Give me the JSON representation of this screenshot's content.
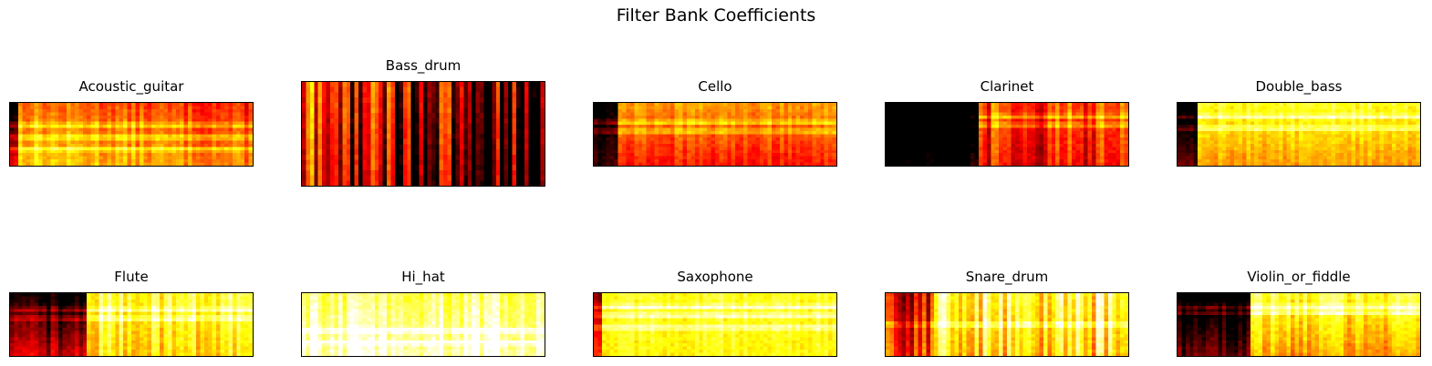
{
  "title": "Filter Bank Coefficients",
  "colormap": "hot",
  "chart_data": [
    {
      "type": "heatmap",
      "title": "Acoustic_guitar",
      "grid": false,
      "axes": "off",
      "features": {
        "attack_frac": 0.03,
        "attack_strength": 0.6,
        "bright_band_rows": [
          0.35,
          0.55,
          0.75
        ],
        "base_level": 0.55,
        "low_rows_level": 0.7,
        "decay": 0.15,
        "stripe": 0.08
      }
    },
    {
      "type": "heatmap",
      "title": "Bass_drum",
      "grid": false,
      "axes": "off",
      "features": {
        "attack_frac": 0.0,
        "attack_strength": 0.0,
        "bright_band_rows": [],
        "base_level": 0.45,
        "low_rows_level": 0.35,
        "decay": 0.35,
        "stripe": 0.35
      }
    },
    {
      "type": "heatmap",
      "title": "Cello",
      "grid": false,
      "axes": "off",
      "features": {
        "attack_frac": 0.1,
        "attack_strength": 0.6,
        "bright_band_rows": [
          0.3,
          0.45
        ],
        "base_level": 0.6,
        "low_rows_level": 0.4,
        "decay": 0.0,
        "stripe": 0.06
      }
    },
    {
      "type": "heatmap",
      "title": "Clarinet",
      "grid": false,
      "axes": "off",
      "features": {
        "attack_frac": 0.38,
        "attack_strength": 0.85,
        "bright_band_rows": [
          0.2,
          0.35
        ],
        "base_level": 0.45,
        "low_rows_level": 0.35,
        "decay": 0.0,
        "stripe": 0.18
      }
    },
    {
      "type": "heatmap",
      "title": "Double_bass",
      "grid": false,
      "axes": "off",
      "features": {
        "attack_frac": 0.07,
        "attack_strength": 0.9,
        "bright_band_rows": [
          0.2,
          0.4
        ],
        "base_level": 0.78,
        "low_rows_level": 0.6,
        "decay": 0.0,
        "stripe": 0.05
      }
    },
    {
      "type": "heatmap",
      "title": "Flute",
      "grid": false,
      "axes": "off",
      "features": {
        "attack_frac": 0.31,
        "attack_strength": 0.85,
        "bright_band_rows": [
          0.25,
          0.4
        ],
        "base_level": 0.8,
        "low_rows_level": 0.7,
        "decay": 0.0,
        "stripe": 0.12
      }
    },
    {
      "type": "heatmap",
      "title": "Hi_hat",
      "grid": false,
      "axes": "off",
      "features": {
        "attack_frac": 0.0,
        "attack_strength": 0.0,
        "bright_band_rows": [
          0.6,
          0.8
        ],
        "base_level": 0.85,
        "low_rows_level": 0.95,
        "decay": 0.0,
        "stripe": 0.1
      }
    },
    {
      "type": "heatmap",
      "title": "Saxophone",
      "grid": false,
      "axes": "off",
      "features": {
        "attack_frac": 0.03,
        "attack_strength": 0.6,
        "bright_band_rows": [
          0.2,
          0.35,
          0.55
        ],
        "base_level": 0.78,
        "low_rows_level": 0.75,
        "decay": 0.0,
        "stripe": 0.05
      }
    },
    {
      "type": "heatmap",
      "title": "Snare_drum",
      "grid": false,
      "axes": "off",
      "features": {
        "attack_frac": 0.2,
        "attack_strength": 0.45,
        "bright_band_rows": [
          0.5
        ],
        "base_level": 0.8,
        "low_rows_level": 0.7,
        "decay": 0.0,
        "stripe": 0.22
      }
    },
    {
      "type": "heatmap",
      "title": "Violin_or_fiddle",
      "grid": false,
      "axes": "off",
      "features": {
        "attack_frac": 0.29,
        "attack_strength": 0.9,
        "bright_band_rows": [
          0.2,
          0.3
        ],
        "base_level": 0.8,
        "low_rows_level": 0.6,
        "decay": 0.0,
        "stripe": 0.1
      }
    }
  ]
}
